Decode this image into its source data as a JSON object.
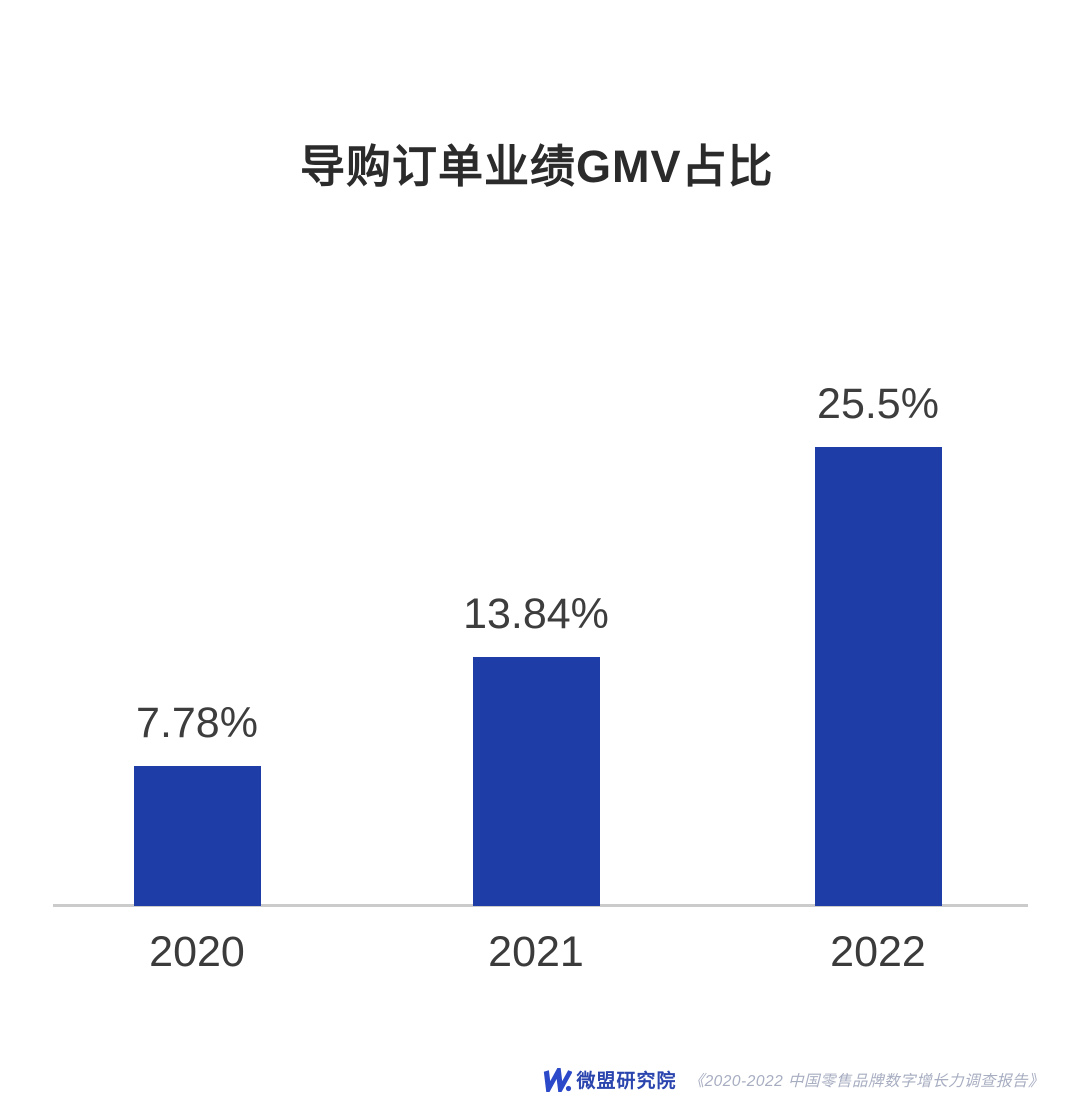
{
  "title": "导购订单业绩GMV占比",
  "chart_data": {
    "type": "bar",
    "title": "导购订单业绩GMV占比",
    "categories": [
      "2020",
      "2021",
      "2022"
    ],
    "values": [
      7.78,
      13.84,
      25.5
    ],
    "value_labels": [
      "7.78%",
      "13.84%",
      "25.5%"
    ],
    "xlabel": "",
    "ylabel": "",
    "ylim": [
      0,
      30
    ],
    "grid": false,
    "legend": false,
    "bar_color": "#1e3da6",
    "axis_line_color": "#cbcbcb",
    "label_color": "#3d3d3d"
  },
  "footer": {
    "logo_icon": "weimob-logo",
    "brand": "微盟研究院",
    "source": "《2020-2022 中国零售品牌数字增长力调查报告》",
    "brand_color": "#2b45ae",
    "logo_color": "#2b49c8",
    "source_color": "#a8aec2"
  }
}
